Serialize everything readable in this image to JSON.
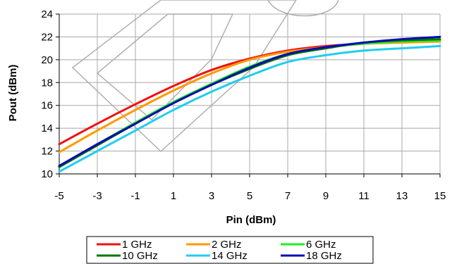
{
  "chart_data": {
    "type": "line",
    "title": "",
    "xlabel": "Pin (dBm)",
    "ylabel": "Pout (dBm)",
    "xlim": [
      -5,
      15
    ],
    "ylim": [
      10,
      24
    ],
    "xticks": [
      -5,
      -3,
      -1,
      1,
      3,
      5,
      7,
      9,
      11,
      13,
      15
    ],
    "yticks": [
      10,
      12,
      14,
      16,
      18,
      20,
      22,
      24
    ],
    "grid": "both",
    "legend_position": "bottom",
    "x": [
      -5,
      -3,
      -1,
      1,
      3,
      5,
      7,
      9,
      11,
      13,
      15
    ],
    "series": [
      {
        "name": "1 GHz",
        "color": "#ee1111",
        "values": [
          12.6,
          14.4,
          16.1,
          17.7,
          19.1,
          20.1,
          20.8,
          21.2,
          21.4,
          21.6,
          21.7
        ]
      },
      {
        "name": "2 GHz",
        "color": "#ff9900",
        "values": [
          11.9,
          13.8,
          15.6,
          17.3,
          18.8,
          20.0,
          20.7,
          21.1,
          21.4,
          21.5,
          21.6
        ]
      },
      {
        "name": "6 GHz",
        "color": "#22ee22",
        "values": [
          10.7,
          12.6,
          14.5,
          16.3,
          17.9,
          19.4,
          20.5,
          21.1,
          21.4,
          21.6,
          21.7
        ]
      },
      {
        "name": "10 GHz",
        "color": "#007700",
        "values": [
          10.6,
          12.5,
          14.4,
          16.2,
          17.8,
          19.2,
          20.4,
          21.0,
          21.5,
          21.7,
          21.8
        ]
      },
      {
        "name": "14 GHz",
        "color": "#22ccee",
        "values": [
          10.2,
          12.0,
          13.8,
          15.6,
          17.2,
          18.6,
          19.8,
          20.4,
          20.8,
          21.0,
          21.2
        ]
      },
      {
        "name": "18 GHz",
        "color": "#0a0ab5",
        "values": [
          10.7,
          12.6,
          14.4,
          16.2,
          17.8,
          19.3,
          20.5,
          21.1,
          21.5,
          21.8,
          22.0
        ]
      }
    ]
  }
}
